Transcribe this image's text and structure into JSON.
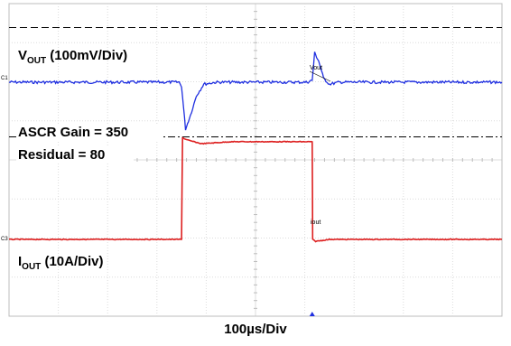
{
  "chart_data": {
    "type": "line",
    "xlabel": "100µs/Div",
    "x_divisions": 10,
    "y_divisions": 8,
    "grid": true,
    "annotations": {
      "vout_scale": {
        "main": "V",
        "sub": "OUT",
        "rest": " (100mV/Div)"
      },
      "iout_scale": {
        "main": "I",
        "sub": "OUT",
        "rest": " (10A/Div)"
      },
      "ascr_gain": "ASCR Gain = 350",
      "residual": "Residual = 80",
      "vout_marker": "Vout",
      "iout_marker": "iout"
    },
    "channel_markers": {
      "c1": "C1",
      "c3": "C3"
    },
    "series": [
      {
        "name": "Vout",
        "color": "#1f2fe0",
        "unit": "div",
        "x_div": [
          0,
          3.45,
          3.5,
          3.58,
          3.68,
          3.8,
          3.95,
          4.2,
          6.05,
          6.15,
          6.2,
          6.28,
          6.38,
          6.5,
          6.7,
          10
        ],
        "y_div": [
          0,
          0,
          -0.1,
          -1.2,
          -0.85,
          -0.35,
          -0.05,
          0,
          0,
          0.05,
          0.75,
          0.55,
          0.1,
          -0.05,
          0,
          0
        ]
      },
      {
        "name": "Iout",
        "color": "#dd1f1f",
        "unit": "div",
        "x_div": [
          0,
          3.5,
          3.52,
          3.6,
          3.9,
          4.5,
          6.15,
          6.16,
          6.22,
          6.5,
          10
        ],
        "y_div": [
          0,
          0,
          2.6,
          2.55,
          2.45,
          2.5,
          2.5,
          0,
          -0.05,
          0,
          0
        ]
      }
    ],
    "vout_ref_lines_div": [
      1.4,
      -1.4
    ],
    "trigger_x_div": 6.15
  }
}
